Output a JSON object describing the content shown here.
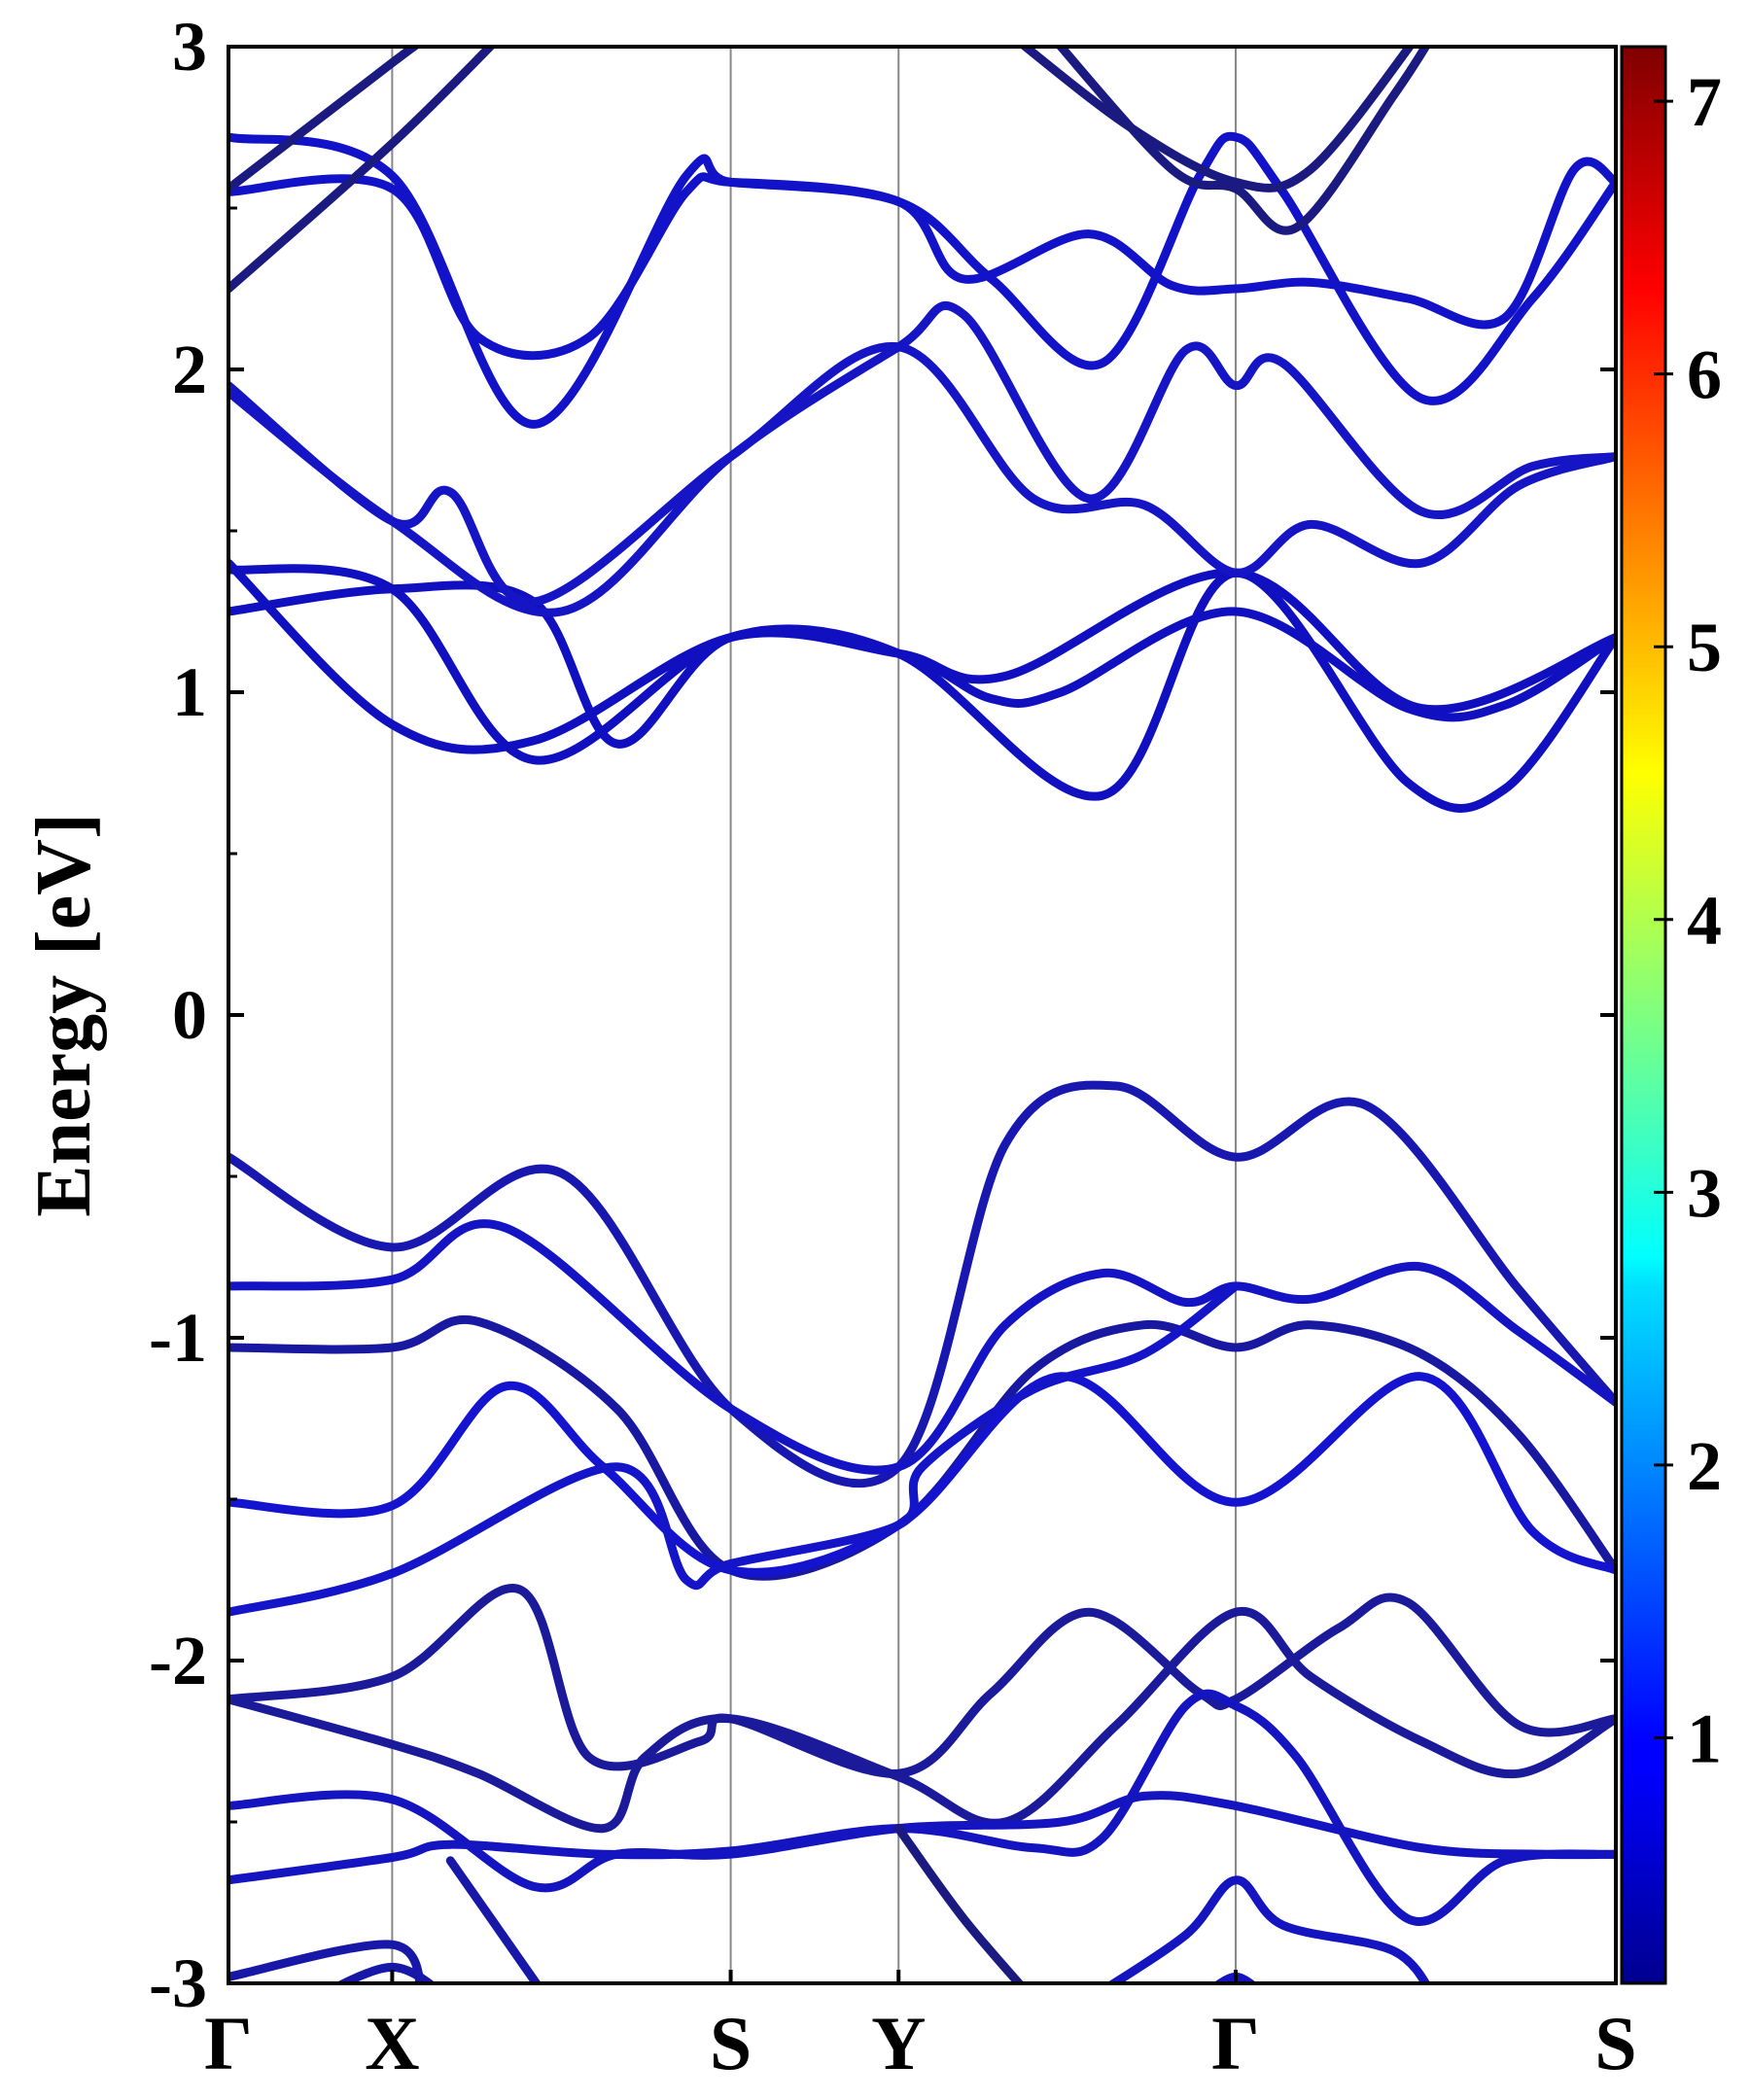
{
  "chart_data": {
    "type": "line",
    "ylabel": "Energy [eV]",
    "xlabel": "",
    "ylim": [
      -3,
      3
    ],
    "yticks": [
      -3,
      -2,
      -1,
      0,
      1,
      2,
      3
    ],
    "ytick_labels": [
      "-3",
      "-2",
      "-1",
      "0",
      "1",
      "2",
      "3"
    ],
    "kpoints": [
      {
        "label": "Γ",
        "x": 0.0
      },
      {
        "label": "X",
        "x": 0.118
      },
      {
        "label": "S",
        "x": 0.362
      },
      {
        "label": "Y",
        "x": 0.483
      },
      {
        "label": "Γ",
        "x": 0.726
      },
      {
        "label": "S",
        "x": 1.0
      }
    ],
    "colorbar": {
      "colormap": "jet",
      "range": [
        0.1,
        7.2
      ],
      "ticks": [
        1,
        2,
        3,
        4,
        5,
        6,
        7
      ],
      "tick_labels": [
        "1",
        "2",
        "3",
        "4",
        "5",
        "6",
        "7"
      ]
    },
    "series": [
      {
        "color": "#1010c0",
        "points": [
          [
            0.0,
            1.38
          ],
          [
            0.118,
            1.32
          ],
          [
            0.22,
            0.79
          ],
          [
            0.362,
            1.17
          ],
          [
            0.483,
            1.12
          ],
          [
            0.55,
            0.98
          ],
          [
            0.6,
            1.0
          ],
          [
            0.726,
            1.25
          ],
          [
            0.85,
            0.95
          ],
          [
            0.92,
            0.96
          ],
          [
            1.0,
            1.17
          ]
        ]
      },
      {
        "color": "#1010c0",
        "points": [
          [
            0.0,
            1.25
          ],
          [
            0.118,
            1.32
          ],
          [
            0.22,
            1.28
          ],
          [
            0.28,
            0.84
          ],
          [
            0.362,
            1.17
          ],
          [
            0.483,
            1.12
          ],
          [
            0.63,
            0.68
          ],
          [
            0.726,
            1.37
          ],
          [
            0.85,
            0.72
          ],
          [
            0.92,
            0.7
          ],
          [
            1.0,
            1.17
          ]
        ]
      },
      {
        "color": "#1010c0",
        "points": [
          [
            0.0,
            1.4
          ],
          [
            0.118,
            0.9
          ],
          [
            0.22,
            0.85
          ],
          [
            0.362,
            1.17
          ],
          [
            0.483,
            1.12
          ],
          [
            0.56,
            1.05
          ],
          [
            0.726,
            1.37
          ],
          [
            0.86,
            0.95
          ],
          [
            1.0,
            1.17
          ]
        ]
      },
      {
        "color": "#1515c5",
        "points": [
          [
            0.0,
            1.95
          ],
          [
            0.118,
            1.53
          ],
          [
            0.16,
            1.62
          ],
          [
            0.22,
            1.28
          ],
          [
            0.362,
            1.73
          ],
          [
            0.483,
            2.07
          ],
          [
            0.58,
            1.6
          ],
          [
            0.66,
            1.58
          ],
          [
            0.726,
            1.37
          ],
          [
            0.78,
            1.52
          ],
          [
            0.86,
            1.4
          ],
          [
            0.93,
            1.64
          ],
          [
            1.0,
            1.73
          ]
        ]
      },
      {
        "color": "#1515c5",
        "points": [
          [
            0.0,
            1.93
          ],
          [
            0.118,
            1.53
          ],
          [
            0.24,
            1.25
          ],
          [
            0.362,
            1.73
          ],
          [
            0.483,
            2.07
          ],
          [
            0.53,
            2.17
          ],
          [
            0.62,
            1.6
          ],
          [
            0.69,
            2.06
          ],
          [
            0.726,
            1.95
          ],
          [
            0.76,
            2.02
          ],
          [
            0.86,
            1.56
          ],
          [
            0.94,
            1.7
          ],
          [
            1.0,
            1.73
          ]
        ]
      },
      {
        "color": "#1212c8",
        "points": [
          [
            0.0,
            2.55
          ],
          [
            0.118,
            2.56
          ],
          [
            0.18,
            2.1
          ],
          [
            0.26,
            2.1
          ],
          [
            0.33,
            2.55
          ],
          [
            0.362,
            2.58
          ],
          [
            0.483,
            2.52
          ],
          [
            0.53,
            2.28
          ],
          [
            0.62,
            2.42
          ],
          [
            0.68,
            2.26
          ],
          [
            0.726,
            2.25
          ],
          [
            0.78,
            2.27
          ],
          [
            0.85,
            2.22
          ],
          [
            0.92,
            2.16
          ],
          [
            0.97,
            2.62
          ],
          [
            1.0,
            2.58
          ]
        ]
      },
      {
        "color": "#1212c8",
        "points": [
          [
            0.0,
            2.72
          ],
          [
            0.118,
            2.6
          ],
          [
            0.22,
            1.83
          ],
          [
            0.33,
            2.6
          ],
          [
            0.362,
            2.58
          ],
          [
            0.483,
            2.52
          ],
          [
            0.55,
            2.28
          ],
          [
            0.63,
            2.02
          ],
          [
            0.7,
            2.6
          ],
          [
            0.726,
            2.72
          ],
          [
            0.76,
            2.55
          ],
          [
            0.86,
            1.91
          ],
          [
            0.94,
            2.22
          ],
          [
            1.0,
            2.58
          ]
        ]
      },
      {
        "color": "#1a1a80",
        "points": [
          [
            0.0,
            2.25
          ],
          [
            0.118,
            2.7
          ],
          [
            0.2,
            3.05
          ]
        ]
      },
      {
        "color": "#1a1a80",
        "points": [
          [
            0.0,
            2.56
          ],
          [
            0.118,
            2.95
          ],
          [
            0.15,
            3.05
          ]
        ]
      },
      {
        "color": "#1a1a80",
        "points": [
          [
            0.56,
            3.05
          ],
          [
            0.65,
            2.75
          ],
          [
            0.726,
            2.58
          ],
          [
            0.78,
            2.62
          ],
          [
            0.86,
            3.05
          ]
        ]
      },
      {
        "color": "#1a1a80",
        "points": [
          [
            0.59,
            3.05
          ],
          [
            0.68,
            2.62
          ],
          [
            0.726,
            2.56
          ],
          [
            0.77,
            2.44
          ],
          [
            0.84,
            2.85
          ],
          [
            0.87,
            3.05
          ]
        ]
      },
      {
        "color": "#1818b0",
        "points": [
          [
            0.0,
            -0.44
          ],
          [
            0.118,
            -0.72
          ],
          [
            0.24,
            -0.49
          ],
          [
            0.362,
            -1.22
          ],
          [
            0.483,
            -1.4
          ],
          [
            0.56,
            -0.4
          ],
          [
            0.64,
            -0.22
          ],
          [
            0.726,
            -0.44
          ],
          [
            0.82,
            -0.28
          ],
          [
            0.93,
            -0.85
          ],
          [
            1.0,
            -1.2
          ]
        ]
      },
      {
        "color": "#1414c4",
        "points": [
          [
            0.0,
            -0.84
          ],
          [
            0.118,
            -0.82
          ],
          [
            0.2,
            -0.66
          ],
          [
            0.362,
            -1.22
          ],
          [
            0.483,
            -1.4
          ],
          [
            0.56,
            -0.96
          ],
          [
            0.63,
            -0.8
          ],
          [
            0.69,
            -0.89
          ],
          [
            0.726,
            -0.84
          ],
          [
            0.78,
            -0.88
          ],
          [
            0.86,
            -0.78
          ],
          [
            0.93,
            -0.98
          ],
          [
            1.0,
            -1.2
          ]
        ]
      },
      {
        "color": "#1818a0",
        "points": [
          [
            0.0,
            -1.03
          ],
          [
            0.118,
            -1.03
          ],
          [
            0.18,
            -0.95
          ],
          [
            0.28,
            -1.22
          ],
          [
            0.362,
            -1.72
          ],
          [
            0.483,
            -1.58
          ],
          [
            0.58,
            -1.1
          ],
          [
            0.66,
            -0.96
          ],
          [
            0.726,
            -1.03
          ],
          [
            0.78,
            -0.96
          ],
          [
            0.86,
            -1.05
          ],
          [
            0.93,
            -1.3
          ],
          [
            1.0,
            -1.72
          ]
        ]
      },
      {
        "color": "#1414d0",
        "points": [
          [
            0.0,
            -1.51
          ],
          [
            0.118,
            -1.52
          ],
          [
            0.2,
            -1.15
          ],
          [
            0.27,
            -1.4
          ],
          [
            0.362,
            -1.72
          ],
          [
            0.483,
            -1.58
          ],
          [
            0.6,
            -1.12
          ],
          [
            0.726,
            -1.51
          ],
          [
            0.86,
            -1.12
          ],
          [
            0.94,
            -1.6
          ],
          [
            1.0,
            -1.72
          ]
        ]
      },
      {
        "color": "#1414c8",
        "points": [
          [
            0.0,
            -1.85
          ],
          [
            0.118,
            -1.73
          ],
          [
            0.28,
            -1.4
          ],
          [
            0.33,
            -1.75
          ],
          [
            0.362,
            -1.7
          ],
          [
            0.483,
            -1.58
          ],
          [
            0.5,
            -1.4
          ],
          [
            0.58,
            -1.16
          ],
          [
            0.66,
            -1.05
          ],
          [
            0.726,
            -0.84
          ]
        ]
      },
      {
        "color": "#1a1a9a",
        "points": [
          [
            0.0,
            -2.12
          ],
          [
            0.118,
            -2.05
          ],
          [
            0.21,
            -1.78
          ],
          [
            0.26,
            -2.3
          ],
          [
            0.34,
            -2.25
          ],
          [
            0.362,
            -2.18
          ],
          [
            0.483,
            -2.35
          ],
          [
            0.55,
            -2.1
          ],
          [
            0.62,
            -1.85
          ],
          [
            0.7,
            -2.1
          ],
          [
            0.726,
            -2.12
          ],
          [
            0.8,
            -1.9
          ],
          [
            0.85,
            -1.82
          ],
          [
            0.93,
            -2.2
          ],
          [
            1.0,
            -2.18
          ]
        ]
      },
      {
        "color": "#1a1a9a",
        "points": [
          [
            0.0,
            -2.12
          ],
          [
            0.118,
            -2.26
          ],
          [
            0.18,
            -2.35
          ],
          [
            0.27,
            -2.52
          ],
          [
            0.3,
            -2.3
          ],
          [
            0.362,
            -2.18
          ],
          [
            0.483,
            -2.36
          ],
          [
            0.56,
            -2.5
          ],
          [
            0.64,
            -2.2
          ],
          [
            0.726,
            -1.85
          ],
          [
            0.78,
            -2.05
          ],
          [
            0.86,
            -2.25
          ],
          [
            0.93,
            -2.35
          ],
          [
            1.0,
            -2.18
          ]
        ]
      },
      {
        "color": "#1414c0",
        "points": [
          [
            0.0,
            -2.45
          ],
          [
            0.118,
            -2.43
          ],
          [
            0.22,
            -2.7
          ],
          [
            0.28,
            -2.6
          ],
          [
            0.362,
            -2.6
          ],
          [
            0.483,
            -2.52
          ],
          [
            0.6,
            -2.5
          ],
          [
            0.66,
            -2.42
          ],
          [
            0.726,
            -2.45
          ],
          [
            0.86,
            -2.58
          ],
          [
            0.95,
            -2.6
          ],
          [
            1.0,
            -2.6
          ]
        ]
      },
      {
        "color": "#1414c0",
        "points": [
          [
            0.0,
            -2.68
          ],
          [
            0.118,
            -2.61
          ],
          [
            0.16,
            -2.57
          ],
          [
            0.27,
            -2.6
          ],
          [
            0.362,
            -2.59
          ],
          [
            0.483,
            -2.52
          ],
          [
            0.58,
            -2.58
          ],
          [
            0.63,
            -2.55
          ],
          [
            0.69,
            -2.14
          ],
          [
            0.726,
            -2.14
          ],
          [
            0.77,
            -2.3
          ],
          [
            0.85,
            -2.8
          ],
          [
            0.92,
            -2.62
          ],
          [
            1.0,
            -2.6
          ]
        ]
      },
      {
        "color": "#1818a8",
        "points": [
          [
            0.0,
            -2.98
          ],
          [
            0.118,
            -2.88
          ],
          [
            0.14,
            -3.05
          ]
        ]
      },
      {
        "color": "#1818a8",
        "points": [
          [
            0.06,
            -3.05
          ],
          [
            0.118,
            -2.95
          ],
          [
            0.16,
            -3.05
          ]
        ]
      },
      {
        "color": "#1818a8",
        "points": [
          [
            0.16,
            -2.62
          ],
          [
            0.23,
            -3.05
          ]
        ]
      },
      {
        "color": "#1a1a80",
        "points": [
          [
            0.483,
            -2.52
          ],
          [
            0.53,
            -2.8
          ],
          [
            0.58,
            -3.05
          ]
        ]
      },
      {
        "color": "#1414c0",
        "points": [
          [
            0.62,
            -3.05
          ],
          [
            0.69,
            -2.85
          ],
          [
            0.726,
            -2.68
          ],
          [
            0.76,
            -2.82
          ],
          [
            0.84,
            -2.9
          ],
          [
            0.87,
            -3.05
          ]
        ]
      },
      {
        "color": "#1414c0",
        "points": [
          [
            0.7,
            -3.05
          ],
          [
            0.726,
            -2.98
          ],
          [
            0.75,
            -3.05
          ]
        ]
      }
    ]
  }
}
